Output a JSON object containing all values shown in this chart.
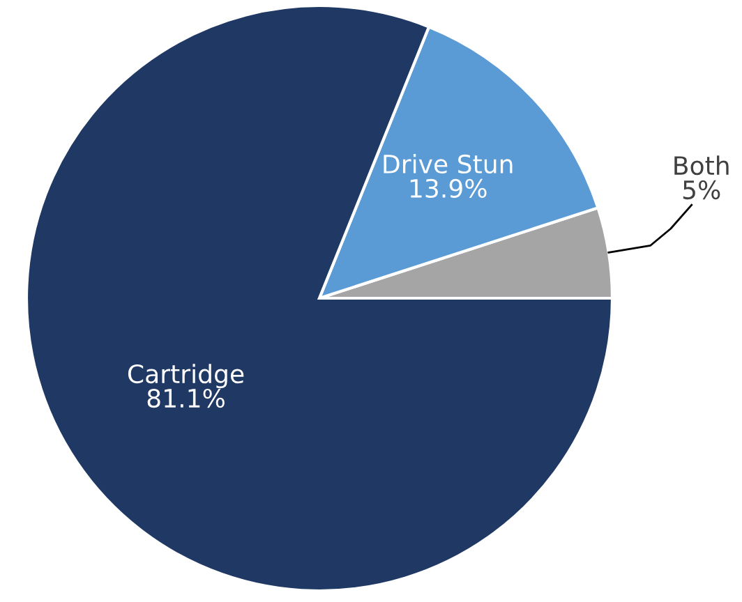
{
  "chart_data": {
    "type": "pie",
    "categories": [
      "Both",
      "Drive Stun",
      "Cartridge"
    ],
    "values": [
      5,
      13.9,
      81.1
    ],
    "colors": [
      "#a5a5a5",
      "#5b9bd5",
      "#1f3864"
    ],
    "value_labels": [
      "5%",
      "13.9%",
      "81.1%"
    ],
    "legend": false
  }
}
